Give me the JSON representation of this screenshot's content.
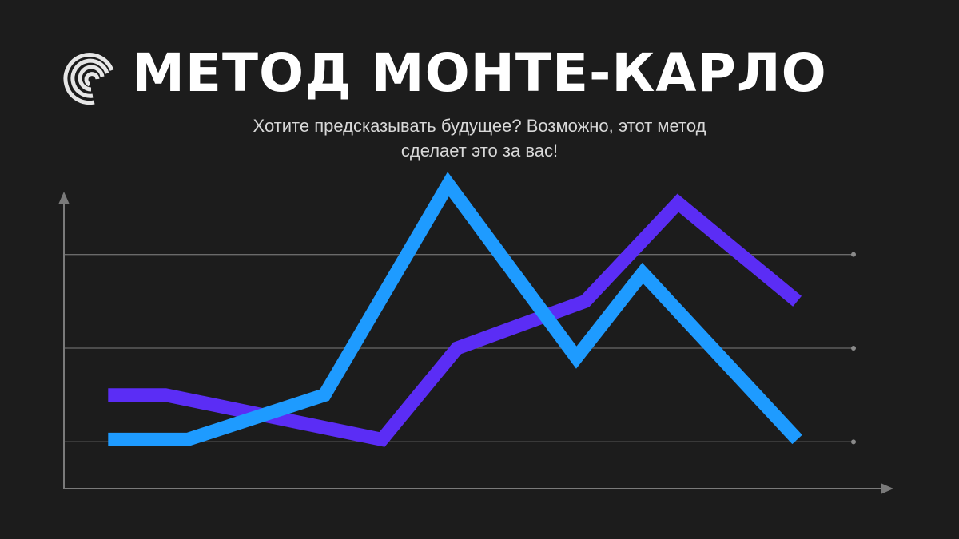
{
  "header": {
    "title": "МЕТОД МОНТЕ-КАРЛО",
    "subtitle_line1": "Хотите предсказывать будущее? Возможно, этот метод",
    "subtitle_line2": "сделает это за вас!"
  },
  "colors": {
    "background": "#1c1c1c",
    "series_1": "#1e9bff",
    "series_2": "#5b2df5",
    "axis": "#7a7a7a",
    "grid": "#6a6a6a",
    "title": "#ffffff",
    "subtitle": "#d8d8d8"
  },
  "logo": {
    "icon": "spiral-c-logo-icon"
  },
  "chart_data": {
    "type": "line",
    "x": [
      0,
      1,
      2,
      3,
      4,
      5,
      6,
      7,
      8
    ],
    "grid": true,
    "gridlines_y": [
      1,
      3,
      5
    ],
    "ylim": [
      0,
      6
    ],
    "xlim": [
      -0.5,
      8.5
    ],
    "series": [
      {
        "values": [
          1.05,
          1.05,
          2,
          6.5,
          2.8,
          4.6,
          1.05,
          1.05,
          1.05
        ],
        "x": [
          0,
          0.9,
          2.45,
          3.85,
          5.3,
          6.05,
          7.8,
          7.8,
          7.8
        ]
      },
      {
        "values": [
          2.0,
          2.0,
          1.05,
          3.0,
          4.0,
          6.1,
          4.0
        ],
        "x": [
          0,
          0.65,
          3.1,
          3.95,
          5.4,
          6.45,
          7.8
        ]
      }
    ]
  }
}
